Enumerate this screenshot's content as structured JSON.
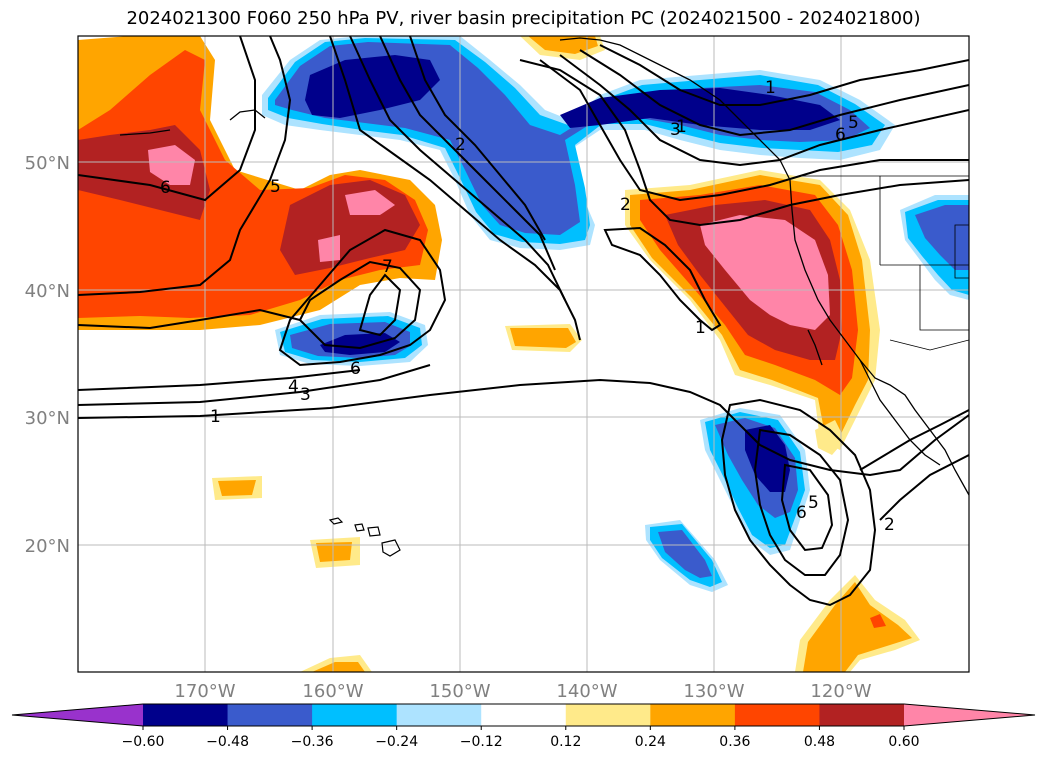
{
  "title": "2024021300 F060 250 hPa PV, river basin precipitation PC (2024021500 - 2024021800)",
  "axes": {
    "lat_ticks": [
      "50°N",
      "40°N",
      "30°N",
      "20°N"
    ],
    "lon_ticks": [
      "170°W",
      "160°W",
      "150°W",
      "140°W",
      "130°W",
      "120°W"
    ]
  },
  "colorbar": {
    "labels": [
      "−0.60",
      "−0.48",
      "−0.36",
      "−0.24",
      "−0.12",
      "0.12",
      "0.24",
      "0.36",
      "0.48",
      "0.60"
    ],
    "colors": [
      "#9932CC",
      "#00008B",
      "#3A5BCC",
      "#00BFFF",
      "#ADE3FF",
      "#FFFFFF",
      "#FFEA8A",
      "#FFA500",
      "#FF4500",
      "#B22222",
      "#FF85A8"
    ]
  },
  "contour_labels": [
    "1",
    "5",
    "6",
    "2",
    "2",
    "1",
    "7",
    "6",
    "4",
    "3",
    "1",
    "5",
    "6",
    "1",
    "5",
    "2",
    "3",
    "6"
  ]
}
